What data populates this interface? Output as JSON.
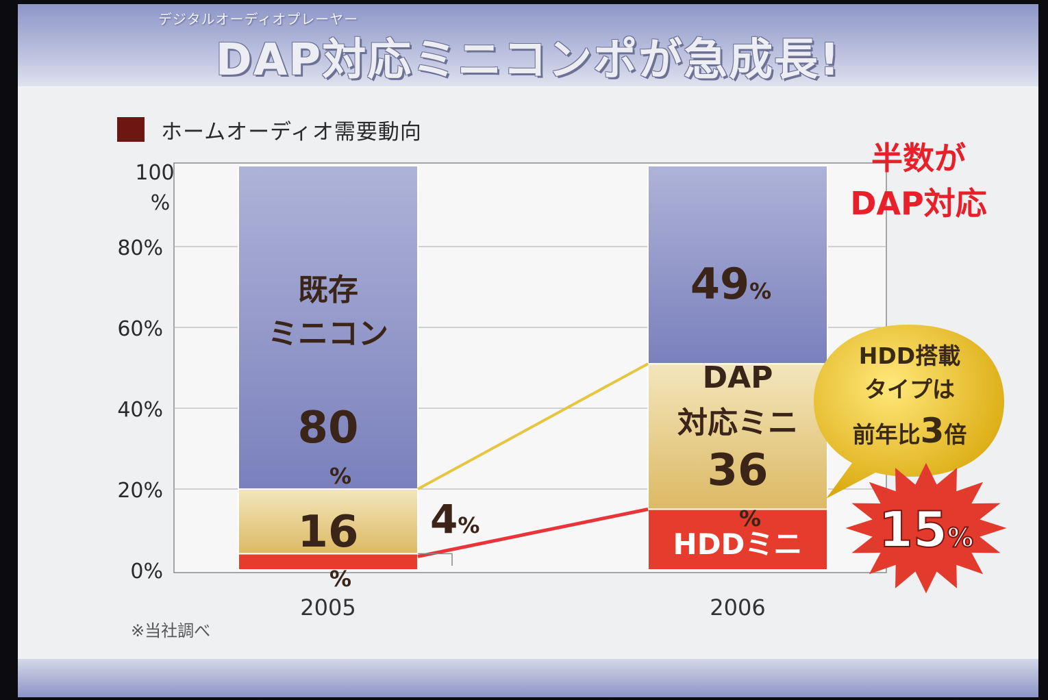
{
  "header": {
    "subtitle": "デジタルオーディオプレーヤー",
    "title": "DAP対応ミニコンポが急成長!"
  },
  "legend": {
    "label": "ホームオーディオ需要動向",
    "color": "#6e1712"
  },
  "note": "※当社調べ",
  "callout": {
    "line1": "半数が",
    "line2": "DAP対応"
  },
  "bubble": {
    "line1": "HDD搭載",
    "line2": "タイプは",
    "line3_prefix": "前年比",
    "line3_number": "3",
    "line3_suffix": "倍",
    "color": "#e6bb16"
  },
  "burst": {
    "value": "15",
    "unit": "%",
    "color": "#e23a2c"
  },
  "chart_data": {
    "type": "bar",
    "stacked": true,
    "categories": [
      "2005",
      "2006"
    ],
    "yticks": [
      {
        "value": 0,
        "label": "0%"
      },
      {
        "value": 20,
        "label": "20%"
      },
      {
        "value": 40,
        "label": "40%"
      },
      {
        "value": 60,
        "label": "60%"
      },
      {
        "value": 80,
        "label": "80%"
      },
      {
        "value": 100,
        "label": "100",
        "label2": "%"
      }
    ],
    "ylim": [
      0,
      100
    ],
    "grid": true,
    "series": [
      {
        "key": "hdd",
        "values": [
          4,
          15
        ],
        "color": "#e53c2e",
        "color_dark": "#e0352a"
      },
      {
        "key": "dap",
        "values": [
          16,
          36
        ],
        "color": "#e2c680",
        "color_dark": "#f2e2b4"
      },
      {
        "key": "existing",
        "values": [
          80,
          49
        ],
        "color": "#8a90c4",
        "color_dark": "#aeb3d8"
      }
    ],
    "labels": {
      "existing_2005_line1": "既存",
      "existing_2005_line2": "ミニコン",
      "existing_2005_value": "80",
      "existing_2005_unit": "%",
      "dap_2005_value": "16",
      "dap_2005_unit": "%",
      "hdd_2005_value": "4",
      "hdd_2005_unit": "%",
      "existing_2006_value": "49",
      "existing_2006_unit": "%",
      "dap_2006_line1": "DAP",
      "dap_2006_line2": "対応ミニ",
      "dap_2006_value": "36",
      "dap_2006_unit": "%",
      "hdd_2006_label": "HDDミニ"
    },
    "connector_colors": {
      "dap": "#e6c640",
      "hdd": "#e8353a"
    }
  }
}
